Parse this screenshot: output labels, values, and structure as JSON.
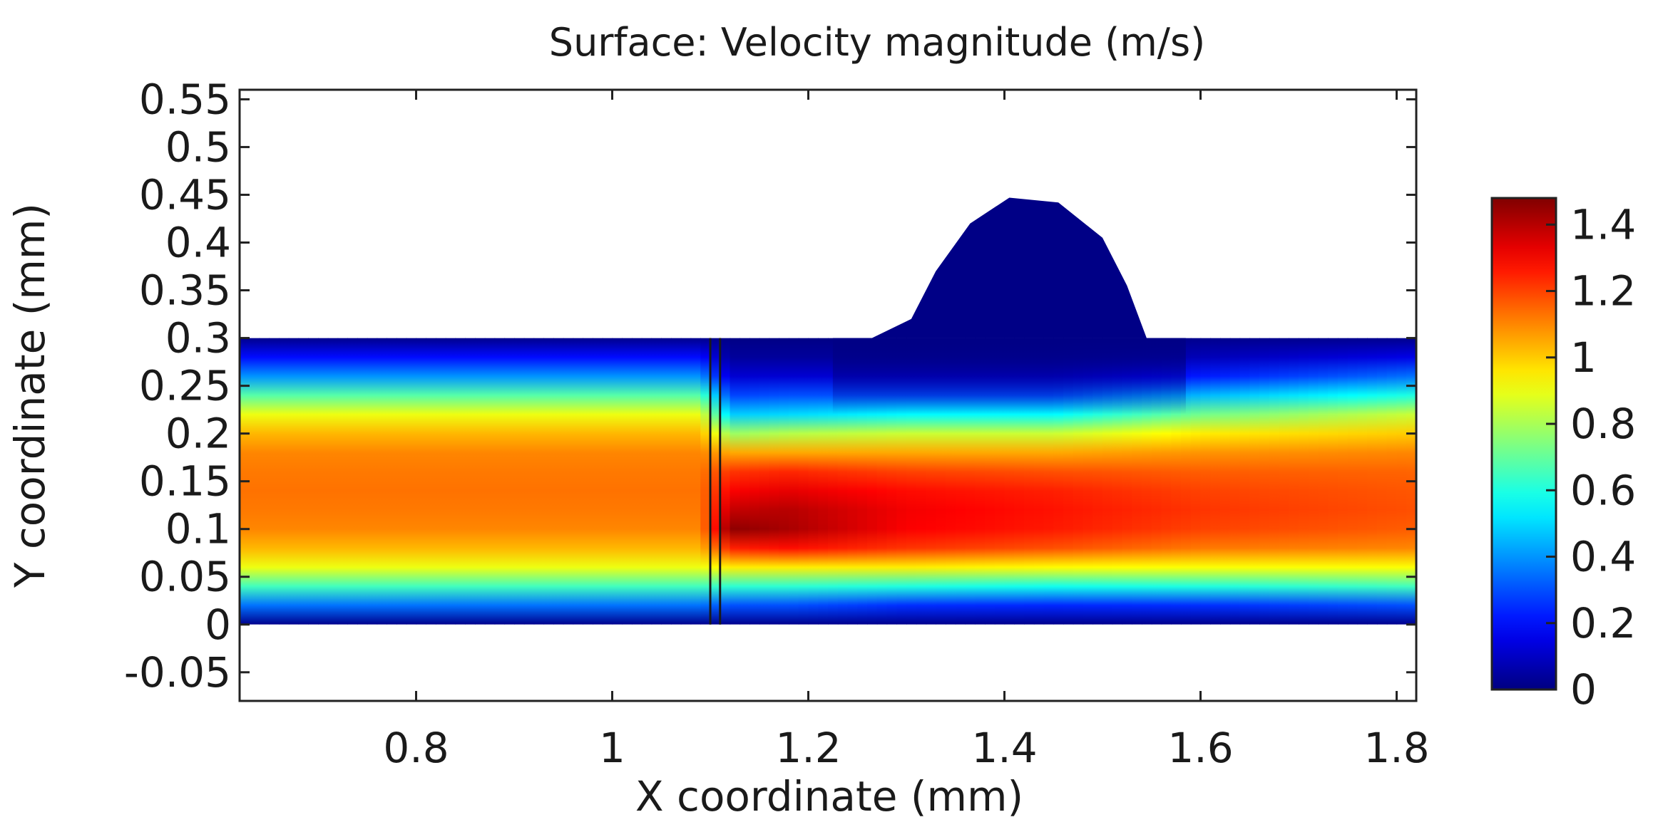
{
  "chart_data": {
    "type": "heatmap",
    "title": "Surface: Velocity magnitude (m/s)",
    "xlabel": "X coordinate (mm)",
    "ylabel": "Y coordinate (mm)",
    "xlim": [
      0.62,
      1.82
    ],
    "ylim": [
      -0.08,
      0.56
    ],
    "x_ticks": [
      {
        "value": 0.8,
        "label": "0.8"
      },
      {
        "value": 1.0,
        "label": "1"
      },
      {
        "value": 1.2,
        "label": "1.2"
      },
      {
        "value": 1.4,
        "label": "1.4"
      },
      {
        "value": 1.6,
        "label": "1.6"
      },
      {
        "value": 1.8,
        "label": "1.8"
      }
    ],
    "y_ticks": [
      {
        "value": -0.05,
        "label": "-0.05"
      },
      {
        "value": 0,
        "label": "0"
      },
      {
        "value": 0.05,
        "label": "0.05"
      },
      {
        "value": 0.1,
        "label": "0.1"
      },
      {
        "value": 0.15,
        "label": "0.15"
      },
      {
        "value": 0.2,
        "label": "0.2"
      },
      {
        "value": 0.25,
        "label": "0.25"
      },
      {
        "value": 0.3,
        "label": "0.3"
      },
      {
        "value": 0.35,
        "label": "0.35"
      },
      {
        "value": 0.4,
        "label": "0.4"
      },
      {
        "value": 0.45,
        "label": "0.45"
      },
      {
        "value": 0.5,
        "label": "0.5"
      },
      {
        "value": 0.55,
        "label": "0.55"
      }
    ],
    "colorbar": {
      "min": 0,
      "max": 1.48,
      "colormap": "jet",
      "ticks": [
        {
          "value": 0,
          "label": "0"
        },
        {
          "value": 0.2,
          "label": "0.2"
        },
        {
          "value": 0.4,
          "label": "0.4"
        },
        {
          "value": 0.6,
          "label": "0.6"
        },
        {
          "value": 0.8,
          "label": "0.8"
        },
        {
          "value": 1.0,
          "label": "1"
        },
        {
          "value": 1.2,
          "label": "1.2"
        },
        {
          "value": 1.4,
          "label": "1.4"
        }
      ]
    },
    "channel": {
      "x_start": 0.62,
      "x_end": 1.82,
      "y_bottom": 0,
      "y_top": 0.3
    },
    "cavity_outline": [
      [
        1.265,
        0.3
      ],
      [
        1.305,
        0.32
      ],
      [
        1.33,
        0.37
      ],
      [
        1.365,
        0.42
      ],
      [
        1.405,
        0.447
      ],
      [
        1.455,
        0.442
      ],
      [
        1.5,
        0.405
      ],
      [
        1.525,
        0.355
      ],
      [
        1.545,
        0.3
      ]
    ],
    "plate_lines_x": [
      1.1,
      1.11
    ],
    "field_samples": {
      "y": [
        0,
        0.02,
        0.04,
        0.06,
        0.08,
        0.1,
        0.12,
        0.14,
        0.16,
        0.18,
        0.2,
        0.22,
        0.24,
        0.26,
        0.28,
        0.3
      ],
      "profiles": [
        {
          "x": 0.62,
          "values": [
            0.02,
            0.35,
            0.65,
            0.9,
            1.03,
            1.1,
            1.12,
            1.13,
            1.12,
            1.1,
            1.03,
            0.9,
            0.68,
            0.4,
            0.2,
            0.02
          ]
        },
        {
          "x": 1.09,
          "values": [
            0.02,
            0.35,
            0.65,
            0.9,
            1.03,
            1.1,
            1.12,
            1.13,
            1.12,
            1.1,
            1.03,
            0.9,
            0.68,
            0.4,
            0.2,
            0.02
          ]
        },
        {
          "x": 1.12,
          "values": [
            0.02,
            0.3,
            0.62,
            0.95,
            1.25,
            1.46,
            1.38,
            1.3,
            1.22,
            1.05,
            0.78,
            0.48,
            0.28,
            0.12,
            0.04,
            0.01
          ]
        },
        {
          "x": 1.18,
          "values": [
            0.02,
            0.3,
            0.62,
            0.95,
            1.28,
            1.42,
            1.4,
            1.33,
            1.24,
            1.05,
            0.82,
            0.5,
            0.3,
            0.12,
            0.04,
            0.01
          ]
        },
        {
          "x": 1.3,
          "values": [
            0.02,
            0.25,
            0.6,
            0.95,
            1.22,
            1.3,
            1.31,
            1.28,
            1.2,
            1.05,
            0.85,
            0.55,
            0.3,
            0.12,
            0.04,
            0.01
          ]
        },
        {
          "x": 1.45,
          "values": [
            0.02,
            0.24,
            0.58,
            0.93,
            1.18,
            1.26,
            1.27,
            1.25,
            1.18,
            1.05,
            0.85,
            0.55,
            0.3,
            0.12,
            0.04,
            0.01
          ]
        },
        {
          "x": 1.6,
          "values": [
            0.02,
            0.25,
            0.6,
            0.92,
            1.12,
            1.2,
            1.22,
            1.2,
            1.16,
            1.08,
            0.95,
            0.72,
            0.45,
            0.22,
            0.08,
            0.02
          ]
        },
        {
          "x": 1.82,
          "values": [
            0.02,
            0.3,
            0.65,
            0.92,
            1.1,
            1.16,
            1.18,
            1.17,
            1.15,
            1.1,
            1.0,
            0.85,
            0.6,
            0.35,
            0.15,
            0.02
          ]
        }
      ],
      "cavity_value": 0.01
    }
  }
}
